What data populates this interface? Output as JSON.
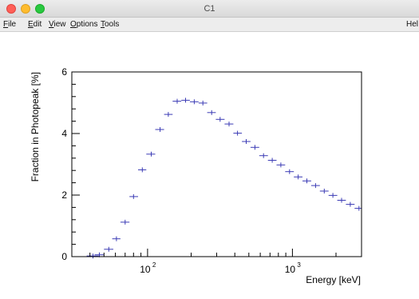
{
  "window": {
    "title": "C1"
  },
  "menubar": {
    "items": [
      {
        "first": "F",
        "rest": "ile"
      },
      {
        "first": "E",
        "rest": "dit"
      },
      {
        "first": "V",
        "rest": "iew"
      },
      {
        "first": "O",
        "rest": "ptions"
      },
      {
        "first": "T",
        "rest": "ools"
      }
    ],
    "help": "Hel"
  },
  "chart_data": {
    "type": "scatter",
    "title": "",
    "xlabel": "Energy [keV]",
    "ylabel": "Fraction in Photopeak [%]",
    "xscale": "log",
    "xlim": [
      30,
      3000
    ],
    "ylim": [
      0,
      6
    ],
    "x_ticks": [
      {
        "value": 100,
        "label": "10",
        "exp": "2"
      },
      {
        "value": 1000,
        "label": "10",
        "exp": "3"
      }
    ],
    "y_ticks": [
      {
        "value": 0,
        "label": "0"
      },
      {
        "value": 2,
        "label": "2"
      },
      {
        "value": 4,
        "label": "4"
      },
      {
        "value": 6,
        "label": "6"
      }
    ],
    "grid": false,
    "series": [
      {
        "color": "#3b3bb5",
        "points": [
          {
            "x": 42,
            "y": 0.02,
            "xlo": 38,
            "xhi": 46
          },
          {
            "x": 46.5,
            "y": 0.06,
            "xlo": 43,
            "xhi": 50
          },
          {
            "x": 54,
            "y": 0.24,
            "xlo": 50,
            "xhi": 58
          },
          {
            "x": 61,
            "y": 0.58,
            "xlo": 57,
            "xhi": 65
          },
          {
            "x": 70,
            "y": 1.12,
            "xlo": 65,
            "xhi": 75
          },
          {
            "x": 80,
            "y": 1.95,
            "xlo": 75,
            "xhi": 86
          },
          {
            "x": 92,
            "y": 2.82,
            "xlo": 86,
            "xhi": 98
          },
          {
            "x": 106,
            "y": 3.33,
            "xlo": 98,
            "xhi": 113
          },
          {
            "x": 122,
            "y": 4.13,
            "xlo": 113,
            "xhi": 130
          },
          {
            "x": 139,
            "y": 4.62,
            "xlo": 130,
            "xhi": 149
          },
          {
            "x": 160,
            "y": 5.05,
            "xlo": 149,
            "xhi": 171
          },
          {
            "x": 183,
            "y": 5.08,
            "xlo": 171,
            "xhi": 196
          },
          {
            "x": 210,
            "y": 5.03,
            "xlo": 196,
            "xhi": 225
          },
          {
            "x": 241,
            "y": 4.99,
            "xlo": 225,
            "xhi": 258
          },
          {
            "x": 277,
            "y": 4.68,
            "xlo": 258,
            "xhi": 296
          },
          {
            "x": 317,
            "y": 4.46,
            "xlo": 296,
            "xhi": 340
          },
          {
            "x": 365,
            "y": 4.31,
            "xlo": 340,
            "xhi": 391
          },
          {
            "x": 418,
            "y": 4.01,
            "xlo": 391,
            "xhi": 448
          },
          {
            "x": 480,
            "y": 3.74,
            "xlo": 448,
            "xhi": 514
          },
          {
            "x": 551,
            "y": 3.55,
            "xlo": 514,
            "xhi": 590
          },
          {
            "x": 632,
            "y": 3.28,
            "xlo": 590,
            "xhi": 677
          },
          {
            "x": 725,
            "y": 3.13,
            "xlo": 677,
            "xhi": 777
          },
          {
            "x": 832,
            "y": 2.98,
            "xlo": 777,
            "xhi": 891
          },
          {
            "x": 955,
            "y": 2.76,
            "xlo": 891,
            "xhi": 1023
          },
          {
            "x": 1096,
            "y": 2.59,
            "xlo": 1023,
            "xhi": 1174
          },
          {
            "x": 1258,
            "y": 2.46,
            "xlo": 1174,
            "xhi": 1348
          },
          {
            "x": 1444,
            "y": 2.31,
            "xlo": 1348,
            "xhi": 1547
          },
          {
            "x": 1658,
            "y": 2.13,
            "xlo": 1547,
            "xhi": 1776
          },
          {
            "x": 1903,
            "y": 1.99,
            "xlo": 1776,
            "xhi": 2039
          },
          {
            "x": 2185,
            "y": 1.83,
            "xlo": 2039,
            "xhi": 2341
          },
          {
            "x": 2508,
            "y": 1.7,
            "xlo": 2341,
            "xhi": 2687
          },
          {
            "x": 2880,
            "y": 1.57,
            "xlo": 2687,
            "xhi": 3000
          }
        ]
      }
    ]
  }
}
